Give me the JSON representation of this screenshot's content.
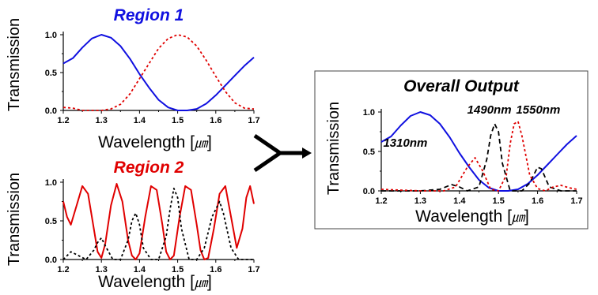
{
  "colors": {
    "blue": "#1010e0",
    "red": "#e00000",
    "black": "#000000",
    "box_border": "#444444"
  },
  "arrow_icon": "merge-arrow-icon",
  "chart_data": [
    {
      "id": "region1",
      "type": "line",
      "title": "Region 1",
      "title_color": "#1010e0",
      "xlabel": "Wavelength [",
      "xunit": "㎛",
      "xunit_close": "]",
      "ylabel": "Transmission",
      "xlim": [
        1.2,
        1.7
      ],
      "ylim": [
        0,
        1.0
      ],
      "xticks": [
        "1.2",
        "1.3",
        "1.4",
        "1.5",
        "1.6",
        "1.7"
      ],
      "yticks": [
        "0.0",
        "0.5",
        "1.0"
      ],
      "series": [
        {
          "color": "#1010e0",
          "dash": "solid",
          "x": [
            1.2,
            1.225,
            1.25,
            1.275,
            1.3,
            1.325,
            1.35,
            1.375,
            1.4,
            1.425,
            1.45,
            1.475,
            1.5,
            1.525,
            1.55,
            1.575,
            1.6,
            1.625,
            1.65,
            1.675,
            1.7
          ],
          "y": [
            0.62,
            0.69,
            0.83,
            0.95,
            1.0,
            0.96,
            0.85,
            0.68,
            0.48,
            0.3,
            0.14,
            0.04,
            0.0,
            0.0,
            0.02,
            0.09,
            0.2,
            0.33,
            0.46,
            0.59,
            0.7
          ]
        },
        {
          "color": "#e00000",
          "dash": "dotted",
          "x": [
            1.2,
            1.225,
            1.25,
            1.275,
            1.3,
            1.325,
            1.35,
            1.375,
            1.4,
            1.425,
            1.45,
            1.475,
            1.5,
            1.525,
            1.55,
            1.575,
            1.6,
            1.625,
            1.65,
            1.675,
            1.7
          ],
          "y": [
            0.04,
            0.03,
            0.0,
            0.0,
            0.0,
            0.02,
            0.08,
            0.22,
            0.42,
            0.62,
            0.82,
            0.95,
            1.0,
            0.97,
            0.85,
            0.66,
            0.45,
            0.25,
            0.1,
            0.03,
            0.02
          ]
        }
      ]
    },
    {
      "id": "region2",
      "type": "line",
      "title": "Region 2",
      "title_color": "#e00000",
      "xlabel": "Wavelength [",
      "xunit": "㎛",
      "xunit_close": "]",
      "ylabel": "Transmission",
      "xlim": [
        1.2,
        1.7
      ],
      "ylim": [
        0,
        1.0
      ],
      "xticks": [
        "1.2",
        "1.3",
        "1.4",
        "1.5",
        "1.6",
        "1.7"
      ],
      "yticks": [
        "0.0",
        "0.5",
        "1.0"
      ],
      "series": [
        {
          "color": "#e00000",
          "dash": "solid",
          "x": [
            1.2,
            1.21,
            1.22,
            1.235,
            1.25,
            1.265,
            1.28,
            1.29,
            1.3,
            1.31,
            1.325,
            1.34,
            1.355,
            1.37,
            1.38,
            1.39,
            1.4,
            1.415,
            1.43,
            1.445,
            1.46,
            1.47,
            1.48,
            1.49,
            1.505,
            1.52,
            1.535,
            1.55,
            1.56,
            1.57,
            1.58,
            1.595,
            1.61,
            1.625,
            1.64,
            1.655,
            1.67,
            1.68,
            1.69,
            1.7
          ],
          "y": [
            0.75,
            0.55,
            0.45,
            0.7,
            0.95,
            0.85,
            0.4,
            0.1,
            0.02,
            0.2,
            0.7,
            0.98,
            0.75,
            0.25,
            0.05,
            0.0,
            0.08,
            0.55,
            0.95,
            0.9,
            0.45,
            0.1,
            0.0,
            0.05,
            0.55,
            0.95,
            0.9,
            0.45,
            0.12,
            0.0,
            0.02,
            0.4,
            0.85,
            0.95,
            0.55,
            0.15,
            0.4,
            0.8,
            0.95,
            0.72
          ]
        },
        {
          "color": "#000000",
          "dash": "dotted",
          "x": [
            1.2,
            1.21,
            1.22,
            1.24,
            1.26,
            1.28,
            1.29,
            1.3,
            1.31,
            1.33,
            1.35,
            1.37,
            1.38,
            1.39,
            1.4,
            1.41,
            1.43,
            1.45,
            1.47,
            1.48,
            1.49,
            1.5,
            1.51,
            1.53,
            1.55,
            1.57,
            1.59,
            1.61,
            1.62,
            1.64,
            1.66,
            1.68,
            1.7
          ],
          "y": [
            0.0,
            0.05,
            0.1,
            0.05,
            0.0,
            0.12,
            0.22,
            0.28,
            0.18,
            0.0,
            0.0,
            0.25,
            0.5,
            0.6,
            0.45,
            0.15,
            0.0,
            0.0,
            0.3,
            0.65,
            0.92,
            0.8,
            0.4,
            0.0,
            0.0,
            0.15,
            0.55,
            0.75,
            0.6,
            0.15,
            0.0,
            0.0,
            0.0
          ]
        }
      ]
    },
    {
      "id": "overall",
      "type": "line",
      "title": "Overall Output",
      "title_color": "#000000",
      "xlabel": "Wavelength [",
      "xunit": "㎛",
      "xunit_close": "]",
      "ylabel": "Transmission",
      "xlim": [
        1.2,
        1.7
      ],
      "ylim": [
        0,
        1.0
      ],
      "xticks": [
        "1.2",
        "1.3",
        "1.4",
        "1.5",
        "1.6",
        "1.7"
      ],
      "yticks": [
        "0.0",
        "0.5",
        "1.0"
      ],
      "annotations": [
        {
          "text": "1310nm",
          "x": 1.205,
          "y": 0.56
        },
        {
          "text": "1490nm",
          "x": 1.42,
          "y": 0.98
        },
        {
          "text": "1550nm",
          "x": 1.545,
          "y": 0.98
        }
      ],
      "series": [
        {
          "color": "#1010e0",
          "dash": "solid",
          "x": [
            1.2,
            1.225,
            1.25,
            1.275,
            1.3,
            1.325,
            1.35,
            1.375,
            1.4,
            1.425,
            1.45,
            1.475,
            1.5,
            1.525,
            1.55,
            1.575,
            1.6,
            1.625,
            1.65,
            1.675,
            1.7
          ],
          "y": [
            0.62,
            0.69,
            0.83,
            0.95,
            1.0,
            0.96,
            0.85,
            0.68,
            0.48,
            0.3,
            0.14,
            0.04,
            0.0,
            0.0,
            0.02,
            0.09,
            0.2,
            0.33,
            0.46,
            0.59,
            0.7
          ]
        },
        {
          "color": "#000000",
          "dash": "dashed",
          "x": [
            1.2,
            1.3,
            1.35,
            1.38,
            1.4,
            1.42,
            1.45,
            1.47,
            1.48,
            1.49,
            1.5,
            1.51,
            1.53,
            1.56,
            1.58,
            1.6,
            1.61,
            1.63,
            1.66,
            1.7
          ],
          "y": [
            0.0,
            0.0,
            0.02,
            0.08,
            0.05,
            0.0,
            0.05,
            0.4,
            0.7,
            0.85,
            0.75,
            0.35,
            0.0,
            0.0,
            0.1,
            0.3,
            0.28,
            0.05,
            0.0,
            0.0
          ]
        },
        {
          "color": "#e00000",
          "dash": "dotted",
          "x": [
            1.2,
            1.3,
            1.36,
            1.39,
            1.42,
            1.44,
            1.46,
            1.48,
            1.5,
            1.52,
            1.53,
            1.54,
            1.55,
            1.56,
            1.58,
            1.6,
            1.62,
            1.64,
            1.66,
            1.68,
            1.7
          ],
          "y": [
            0.02,
            0.0,
            0.0,
            0.05,
            0.3,
            0.42,
            0.25,
            0.02,
            0.0,
            0.2,
            0.6,
            0.85,
            0.88,
            0.7,
            0.2,
            0.03,
            0.0,
            0.05,
            0.07,
            0.04,
            0.02
          ]
        }
      ]
    }
  ]
}
